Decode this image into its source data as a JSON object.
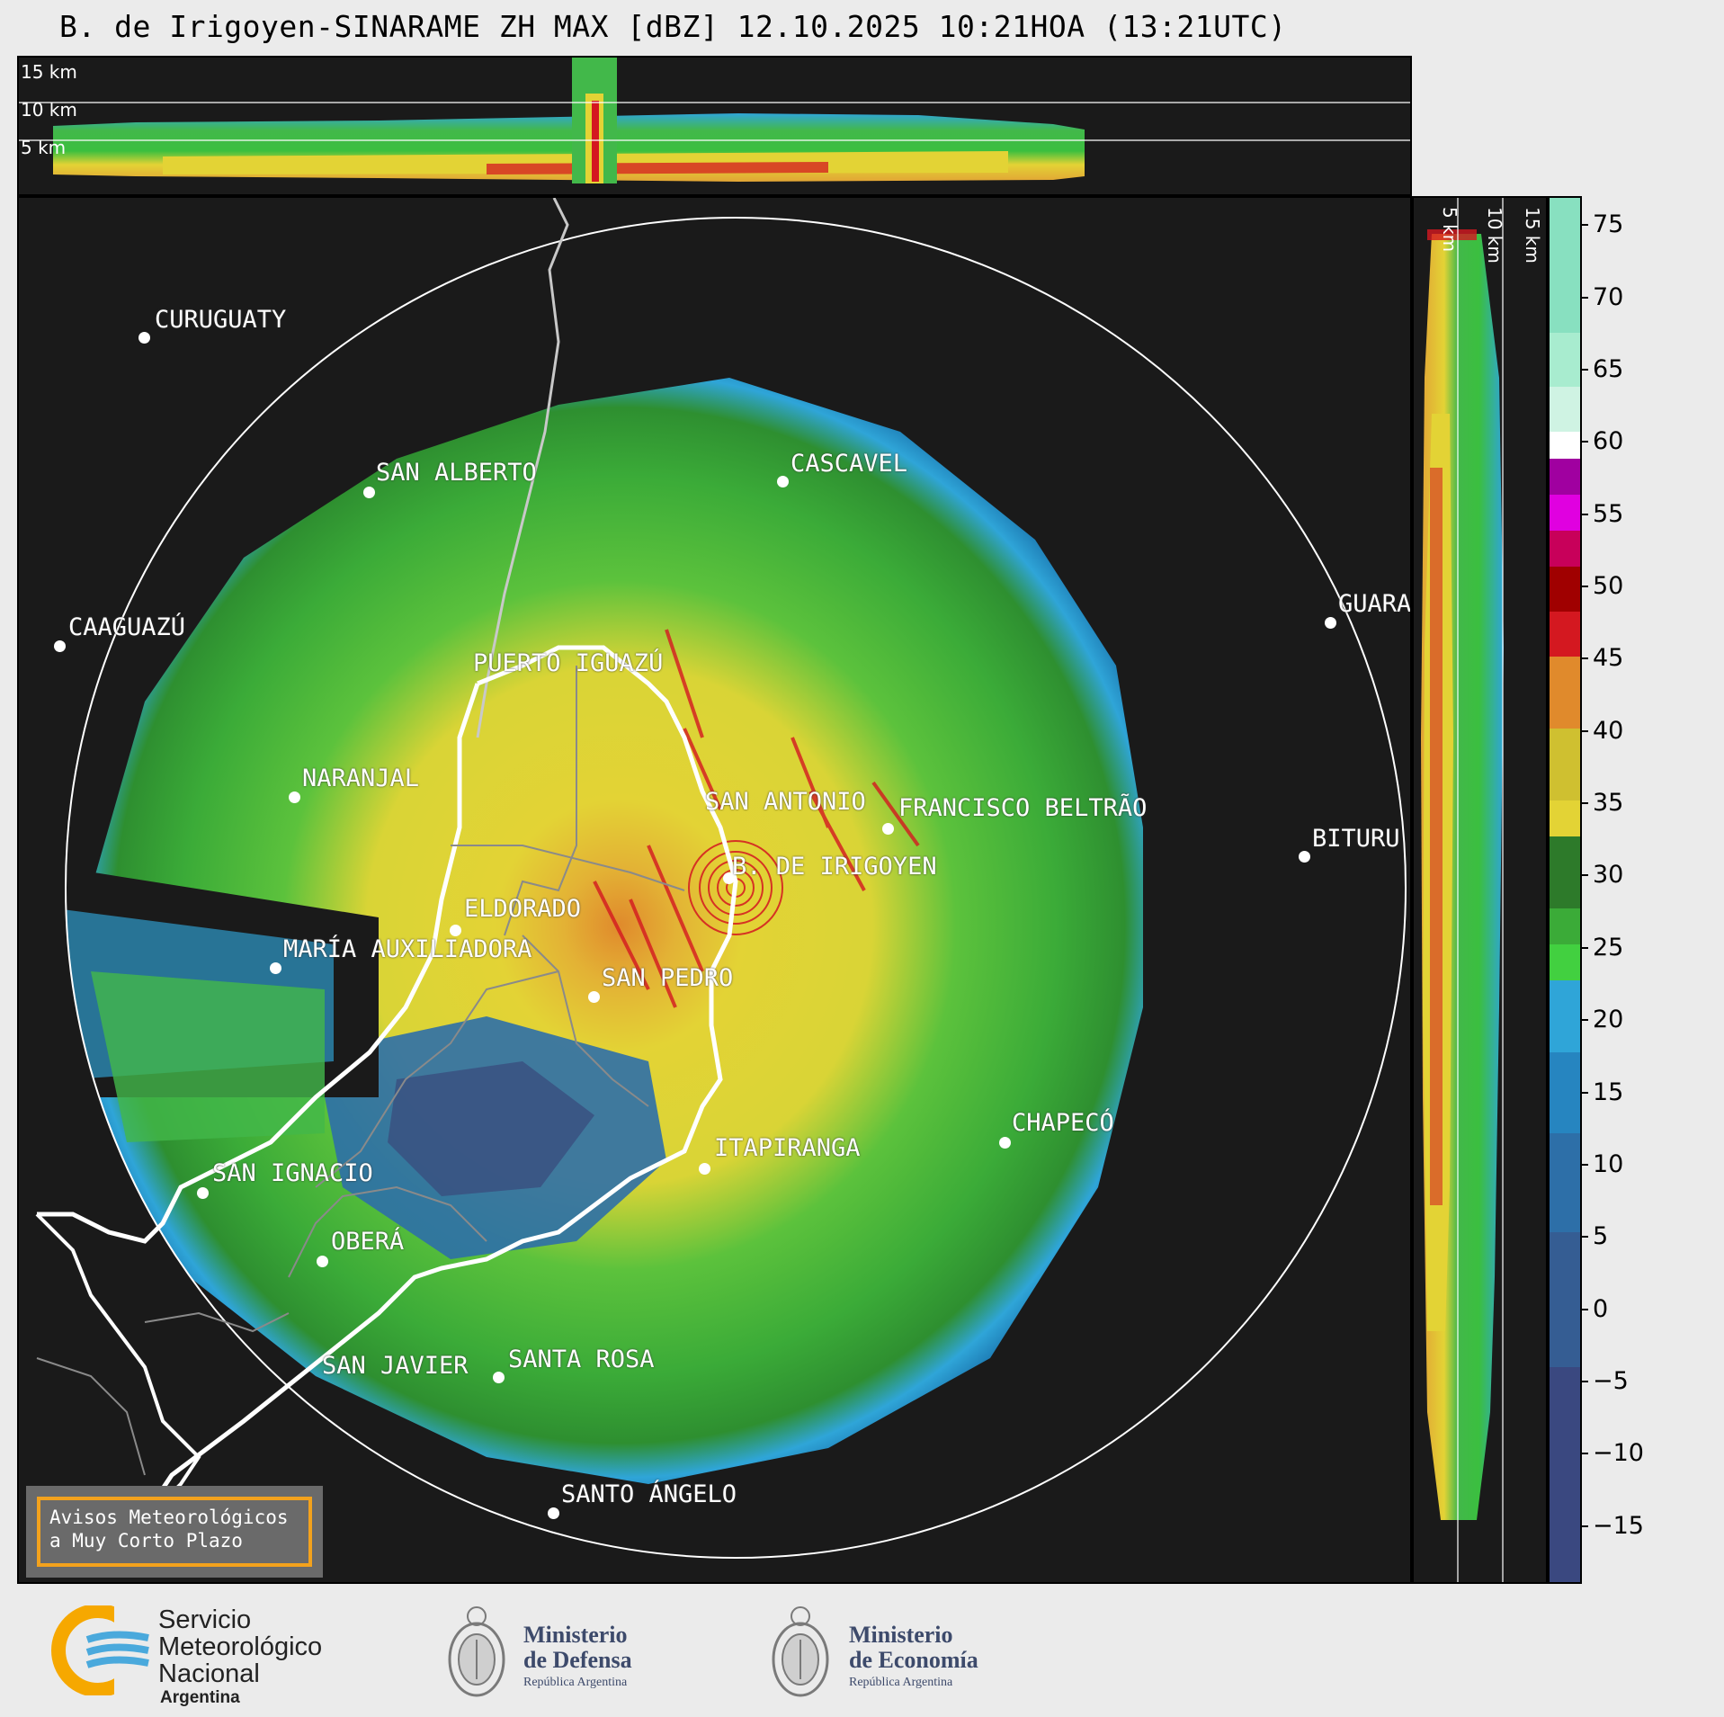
{
  "title": "B. de Irigoyen-SINARAME ZH MAX [dBZ] 12.10.2025 10:21HOA (13:21UTC)",
  "top_panel": {
    "altitude_labels": [
      "15 km",
      "10 km",
      "5 km"
    ]
  },
  "right_panel": {
    "altitude_labels": [
      "5 km",
      "10 km",
      "15 km"
    ]
  },
  "colorbar": {
    "unit": "dBZ",
    "ticks": [
      "75",
      "70",
      "65",
      "60",
      "55",
      "50",
      "45",
      "40",
      "35",
      "30",
      "25",
      "20",
      "15",
      "10",
      "5",
      "0",
      "−5",
      "−10",
      "−15"
    ],
    "min": -19,
    "max": 77,
    "colors": {
      "below_0": "#3a4f80",
      "0_to_10": "#2d6fa8",
      "10_to_18": "#2fa5d8",
      "18_to_30": "#2ea83a",
      "30_to_42": "#e3d335",
      "42_to_50": "#d41820",
      "50_to_58": "#c800c8",
      "58_to_62": "#ffffff",
      "above_62": "#88e0c0"
    }
  },
  "map": {
    "radar_site": "B. DE IRIGOYEN",
    "cities": [
      {
        "name": "CURUGUATY"
      },
      {
        "name": "SAN ALBERTO"
      },
      {
        "name": "CASCAVEL"
      },
      {
        "name": "CAAGUAZÚ"
      },
      {
        "name": "GUARA"
      },
      {
        "name": "PUERTO IGUAZÚ"
      },
      {
        "name": "NARANJAL"
      },
      {
        "name": "SAN ANTONIO"
      },
      {
        "name": "FRANCISCO BELTRÃO"
      },
      {
        "name": "BITURU"
      },
      {
        "name": "B. DE IRIGOYEN"
      },
      {
        "name": "ELDORADO"
      },
      {
        "name": "MARÍA AUXILIADORA"
      },
      {
        "name": "SAN PEDRO"
      },
      {
        "name": "CHAPECÓ"
      },
      {
        "name": "ITAPIRANGA"
      },
      {
        "name": "SAN IGNACIO"
      },
      {
        "name": "OBERÁ"
      },
      {
        "name": "SAN JAVIER"
      },
      {
        "name": "SANTA ROSA"
      },
      {
        "name": "SANTO ÁNGELO"
      }
    ],
    "warning_box": {
      "line1": "Avisos Meteorológicos",
      "line2": "a Muy Corto Plazo"
    }
  },
  "footer": {
    "smn": {
      "line1": "Servicio",
      "line2": "Meteorológico",
      "line3": "Nacional",
      "line4": "Argentina"
    },
    "defensa": {
      "line1": "Ministerio",
      "line2": "de Defensa",
      "line3": "República Argentina"
    },
    "economia": {
      "line1": "Ministerio",
      "line2": "de Economía",
      "line3": "República Argentina"
    }
  }
}
